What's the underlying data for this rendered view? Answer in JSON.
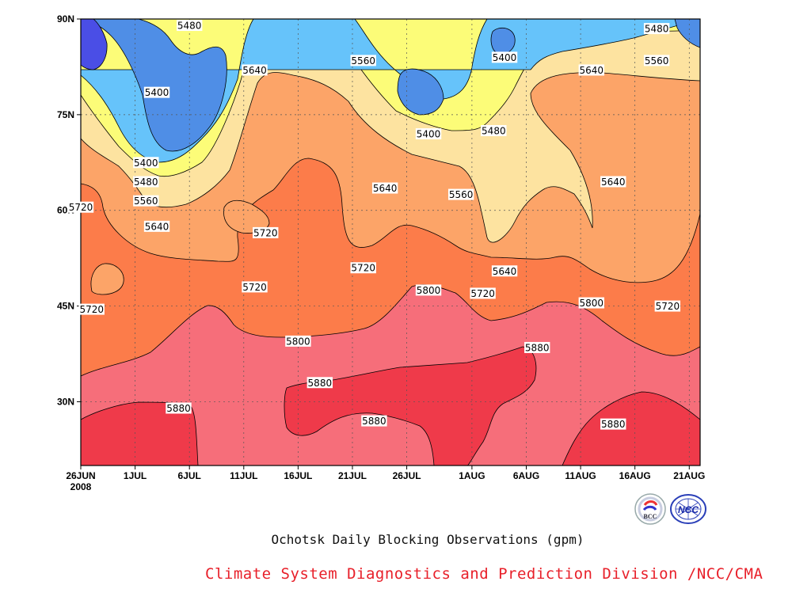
{
  "chart_data": {
    "type": "contour",
    "title": "Ochotsk Daily Blocking Observations (gpm)",
    "x_ticks": [
      "26JUN",
      "1JUL",
      "6JUL",
      "11JUL",
      "16JUL",
      "21JUL",
      "26JUL",
      "1AUG",
      "6AUG",
      "11AUG",
      "16AUG",
      "21AUG"
    ],
    "x_year": "2008",
    "y_ticks": [
      "90N",
      "75N",
      "60N",
      "45N",
      "30N"
    ],
    "xlim": [
      "2008-06-26",
      "2008-08-22"
    ],
    "ylim": [
      20,
      90
    ],
    "contour_levels": [
      5400,
      5480,
      5560,
      5640,
      5720,
      5800,
      5880
    ],
    "fill_colors": {
      "below_5400": "#4a4ee6",
      "5400_5480": "#4f8ee6",
      "5480_5560": "#66c3fa",
      "5560_5640": "#fcfc78",
      "5640_5720": "#fde3a0",
      "5720_5800": "#fca468",
      "5800_5880": "#fc7c4a",
      "5880_5960": "#f66e7a",
      "above_5960": "#ef3a4a"
    },
    "contour_labels": [
      {
        "value": "5480",
        "date": "2008-07-06",
        "lat": 89
      },
      {
        "value": "5560",
        "date": "2008-07-22",
        "lat": 83.5
      },
      {
        "value": "5640",
        "date": "2008-07-12",
        "lat": 82
      },
      {
        "value": "5400",
        "date": "2008-07-03",
        "lat": 78.5
      },
      {
        "value": "5400",
        "date": "2008-07-28",
        "lat": 72
      },
      {
        "value": "5400",
        "date": "2008-08-04",
        "lat": 84
      },
      {
        "value": "5480",
        "date": "2008-08-03",
        "lat": 72.5
      },
      {
        "value": "5480",
        "date": "2008-08-18",
        "lat": 88.5
      },
      {
        "value": "5560",
        "date": "2008-08-18",
        "lat": 83.5
      },
      {
        "value": "5640",
        "date": "2008-08-12",
        "lat": 82
      },
      {
        "value": "5400",
        "date": "2008-07-02",
        "lat": 67.5
      },
      {
        "value": "5480",
        "date": "2008-07-02",
        "lat": 64.5
      },
      {
        "value": "5560",
        "date": "2008-07-02",
        "lat": 61.5
      },
      {
        "value": "5640",
        "date": "2008-07-03",
        "lat": 57.5
      },
      {
        "value": "5720",
        "date": "2008-06-26",
        "lat": 60.5
      },
      {
        "value": "5640",
        "date": "2008-07-24",
        "lat": 63.5
      },
      {
        "value": "5560",
        "date": "2008-07-31",
        "lat": 62.5
      },
      {
        "value": "5640",
        "date": "2008-08-14",
        "lat": 64.5
      },
      {
        "value": "5720",
        "date": "2008-07-13",
        "lat": 56.5
      },
      {
        "value": "5720",
        "date": "2008-07-22",
        "lat": 51
      },
      {
        "value": "5720",
        "date": "2008-07-12",
        "lat": 48
      },
      {
        "value": "5640",
        "date": "2008-08-04",
        "lat": 50.5
      },
      {
        "value": "5720",
        "date": "2008-06-27",
        "lat": 44.5
      },
      {
        "value": "5800",
        "date": "2008-07-28",
        "lat": 47.5
      },
      {
        "value": "5720",
        "date": "2008-08-02",
        "lat": 47
      },
      {
        "value": "5800",
        "date": "2008-08-12",
        "lat": 45.5
      },
      {
        "value": "5720",
        "date": "2008-08-19",
        "lat": 45
      },
      {
        "value": "5800",
        "date": "2008-07-16",
        "lat": 39.5
      },
      {
        "value": "5880",
        "date": "2008-08-07",
        "lat": 38.5
      },
      {
        "value": "5880",
        "date": "2008-07-05",
        "lat": 29
      },
      {
        "value": "5880",
        "date": "2008-07-18",
        "lat": 33
      },
      {
        "value": "5880",
        "date": "2008-07-23",
        "lat": 27
      },
      {
        "value": "5880",
        "date": "2008-08-14",
        "lat": 26.5
      }
    ]
  },
  "footer": {
    "caption": "Ochotsk Daily Blocking Observations (gpm)",
    "credit": "Climate System Diagnostics and Prediction Division /NCC/CMA",
    "logo_left_text": "BCC",
    "logo_right_text": "NCC",
    "logo_left_icon": "bcc-logo-icon",
    "logo_right_icon": "ncc-logo-icon"
  }
}
